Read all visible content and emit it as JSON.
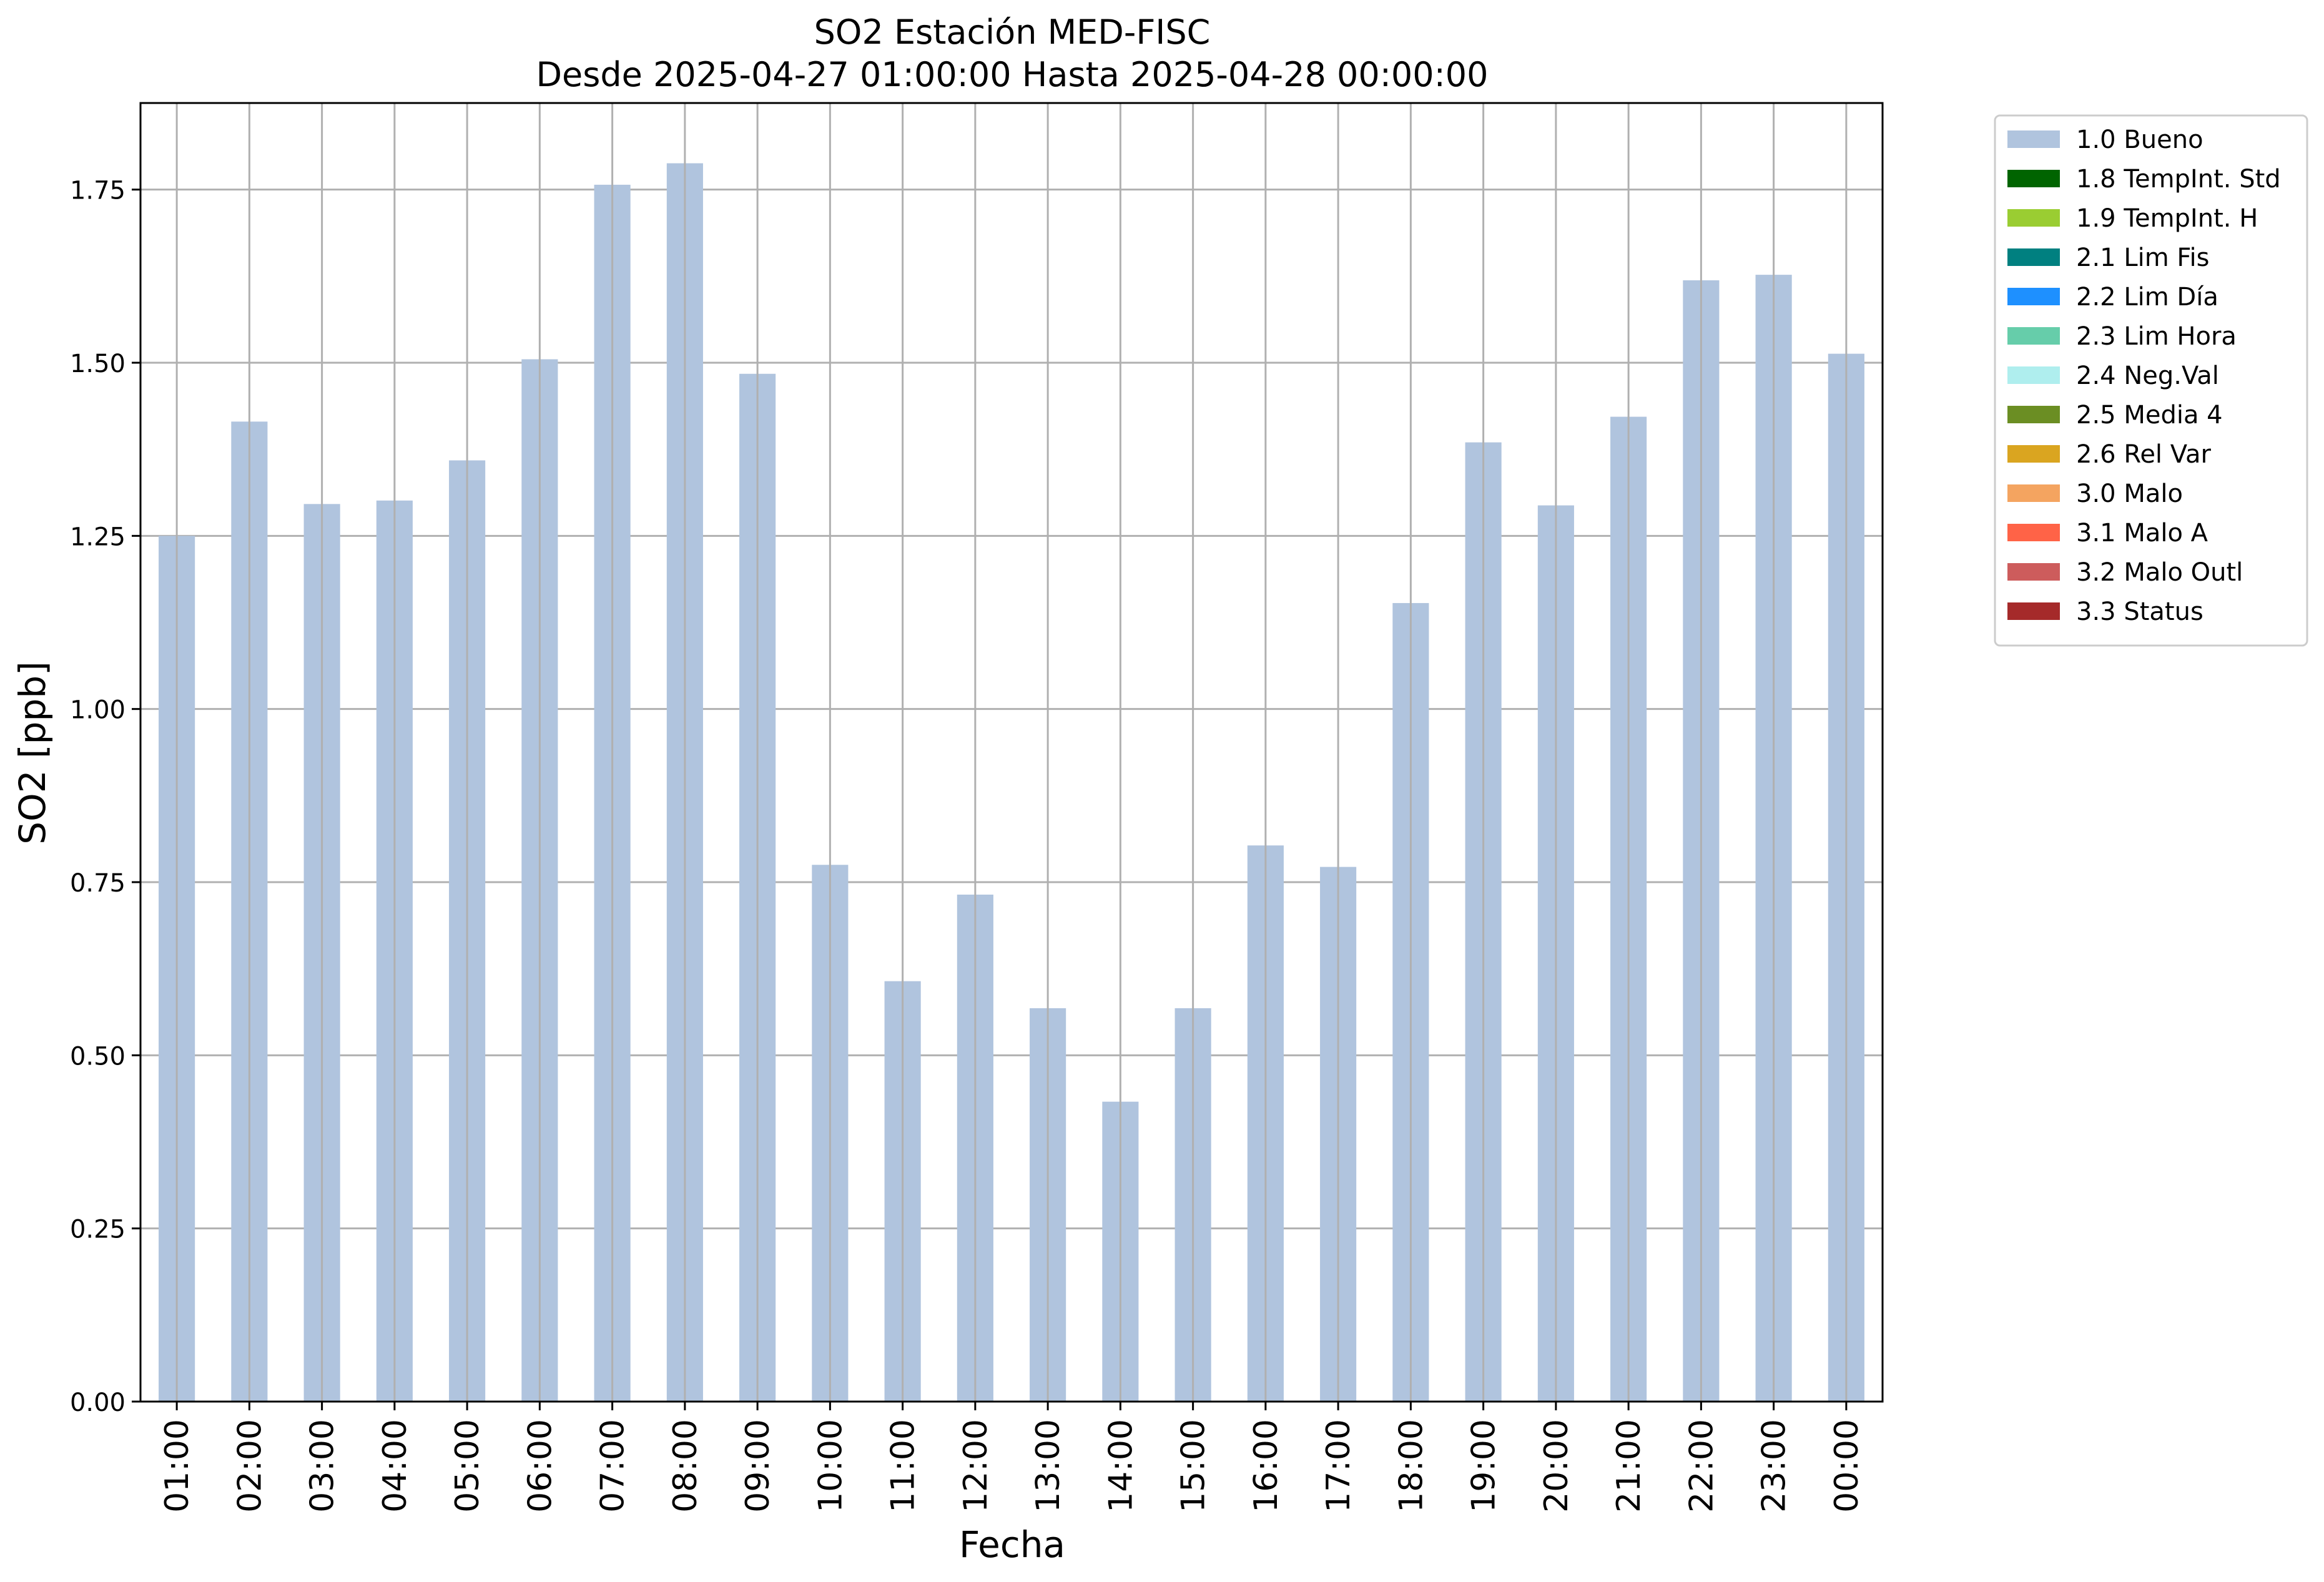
{
  "chart_data": {
    "type": "bar",
    "title": "SO2 Estación MED-FISC",
    "subtitle": "Desde 2025-04-27 01:00:00 Hasta 2025-04-28 00:00:00",
    "xlabel": "Fecha",
    "ylabel": "SO2 [ppb]",
    "categories": [
      "01:00",
      "02:00",
      "03:00",
      "04:00",
      "05:00",
      "06:00",
      "07:00",
      "08:00",
      "09:00",
      "10:00",
      "11:00",
      "12:00",
      "13:00",
      "14:00",
      "15:00",
      "16:00",
      "17:00",
      "18:00",
      "19:00",
      "20:00",
      "21:00",
      "22:00",
      "23:00",
      "00:00"
    ],
    "series": [
      {
        "name": "1.0 Bueno",
        "values": [
          1.25,
          1.415,
          1.296,
          1.301,
          1.359,
          1.505,
          1.757,
          1.788,
          1.484,
          0.775,
          0.607,
          0.732,
          0.568,
          0.433,
          0.568,
          0.803,
          0.772,
          1.153,
          1.385,
          1.294,
          1.422,
          1.619,
          1.627,
          1.513
        ]
      }
    ],
    "ylim": [
      0,
      1.875
    ],
    "yticks": [
      "0.00",
      "0.25",
      "0.50",
      "0.75",
      "1.00",
      "1.25",
      "1.50",
      "1.75"
    ],
    "grid": true,
    "legend_position": "outside top-right",
    "bar_color": "#b0c4de",
    "legend": [
      {
        "label": "1.0 Bueno",
        "color": "#b0c4de"
      },
      {
        "label": "1.8 TempInt. Std",
        "color": "#006400"
      },
      {
        "label": "1.9 TempInt. H",
        "color": "#9acd32"
      },
      {
        "label": "2.1 Lim Fis",
        "color": "#008080"
      },
      {
        "label": "2.2 Lim Día",
        "color": "#1e90ff"
      },
      {
        "label": "2.3 Lim Hora",
        "color": "#66cdaa"
      },
      {
        "label": "2.4 Neg.Val",
        "color": "#afeeee"
      },
      {
        "label": "2.5 Media 4",
        "color": "#6b8e23"
      },
      {
        "label": "2.6 Rel Var",
        "color": "#daa520"
      },
      {
        "label": "3.0 Malo",
        "color": "#f4a460"
      },
      {
        "label": "3.1 Malo A",
        "color": "#ff6347"
      },
      {
        "label": "3.2 Malo Outl",
        "color": "#cd5c5c"
      },
      {
        "label": "3.3 Status",
        "color": "#a52a2a"
      }
    ]
  }
}
